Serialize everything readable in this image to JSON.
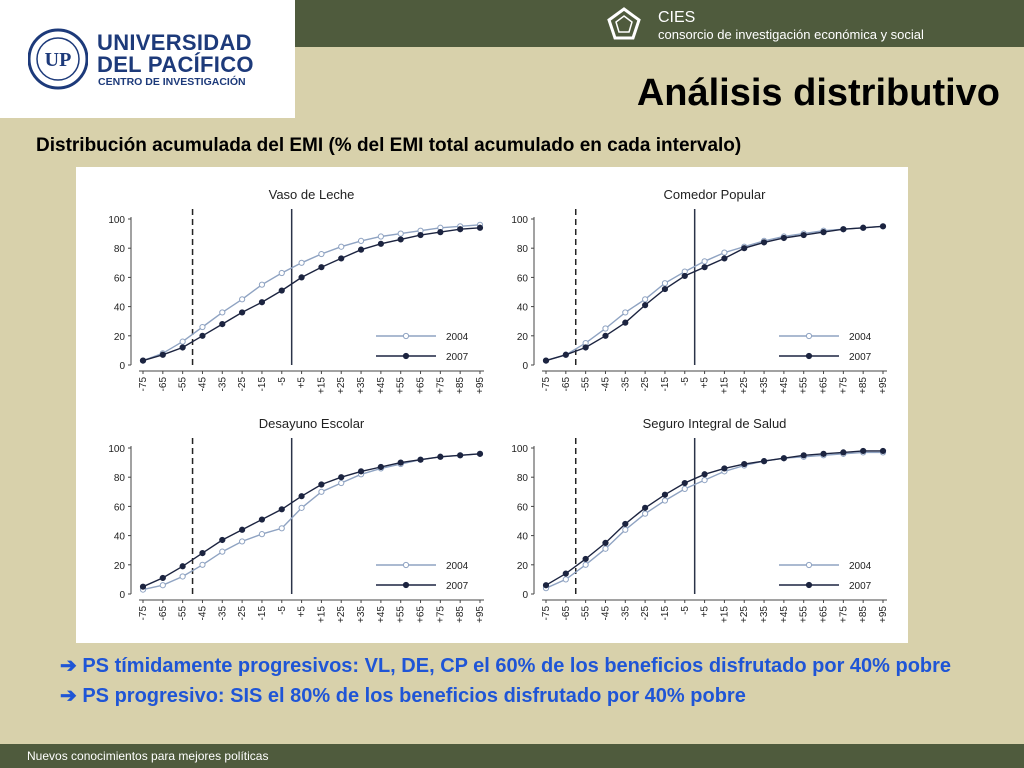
{
  "header": {
    "university_line1": "UNIVERSIDAD",
    "university_line2": "DEL PACÍFICO",
    "university_line3": "CENTRO DE INVESTIGACIÓN",
    "cies_name": "CIES",
    "cies_subtitle": "consorcio de investigación económica y social"
  },
  "title": "Análisis distributivo",
  "subtitle": "Distribución acumulada del EMI (% del EMI total acumulado en cada intervalo)",
  "bullets": [
    "PS tímidamente progresivos: VL, DE, CP el 60% de los beneficios disfrutado por 40% pobre",
    "PS progresivo: SIS el 80% de los beneficios disfrutado por 40% pobre"
  ],
  "footer": {
    "text": "Nuevos conocimientos para mejores políticas"
  },
  "colors": {
    "series_2004": "#8fa3c2",
    "series_2007": "#1c2440",
    "header_bar": "#4f5b3d",
    "background": "#d8d1ab",
    "bullet_text": "#1f55d6"
  },
  "chart_data": [
    {
      "type": "line",
      "title": "Vaso de Leche",
      "categories": [
        "-75",
        "-65",
        "-55",
        "-45",
        "-35",
        "-25",
        "-15",
        "-5",
        "+5",
        "+15",
        "+25",
        "+35",
        "+45",
        "+55",
        "+65",
        "+75",
        "+85",
        "+95"
      ],
      "ylim": [
        0,
        100
      ],
      "yticks": [
        0,
        20,
        40,
        60,
        80,
        100
      ],
      "ref_lines": {
        "dashed": "-45",
        "solid": "+5"
      },
      "legend": "bottom-right",
      "series": [
        {
          "name": "2004",
          "values": [
            3,
            8,
            16,
            26,
            36,
            45,
            55,
            63,
            70,
            76,
            81,
            85,
            88,
            90,
            92,
            94,
            95,
            96
          ]
        },
        {
          "name": "2007",
          "values": [
            3,
            7,
            12,
            20,
            28,
            36,
            43,
            51,
            60,
            67,
            73,
            79,
            83,
            86,
            89,
            91,
            93,
            94
          ]
        }
      ]
    },
    {
      "type": "line",
      "title": "Comedor Popular",
      "categories": [
        "-75",
        "-65",
        "-55",
        "-45",
        "-35",
        "-25",
        "-15",
        "-5",
        "+5",
        "+15",
        "+25",
        "+35",
        "+45",
        "+55",
        "+65",
        "+75",
        "+85",
        "+95"
      ],
      "ylim": [
        0,
        100
      ],
      "yticks": [
        0,
        20,
        40,
        60,
        80,
        100
      ],
      "ref_lines": {
        "dashed": "-55",
        "solid": "+5"
      },
      "legend": "bottom-right",
      "series": [
        {
          "name": "2004",
          "values": [
            3,
            7,
            15,
            25,
            36,
            45,
            56,
            64,
            71,
            77,
            81,
            85,
            88,
            90,
            92,
            93,
            94,
            95
          ]
        },
        {
          "name": "2007",
          "values": [
            3,
            7,
            12,
            20,
            29,
            41,
            52,
            61,
            67,
            73,
            80,
            84,
            87,
            89,
            91,
            93,
            94,
            95
          ]
        }
      ]
    },
    {
      "type": "line",
      "title": "Desayuno Escolar",
      "categories": [
        "-75",
        "-65",
        "-55",
        "-45",
        "-35",
        "-25",
        "-15",
        "-5",
        "+5",
        "+15",
        "+25",
        "+35",
        "+45",
        "+55",
        "+65",
        "+75",
        "+85",
        "+95"
      ],
      "ylim": [
        0,
        100
      ],
      "yticks": [
        0,
        20,
        40,
        60,
        80,
        100
      ],
      "ref_lines": {
        "dashed": "-45",
        "solid": "+5"
      },
      "legend": "bottom-right",
      "series": [
        {
          "name": "2004",
          "values": [
            3,
            6,
            12,
            20,
            29,
            36,
            41,
            45,
            59,
            70,
            76,
            82,
            86,
            89,
            92,
            94,
            95,
            96
          ]
        },
        {
          "name": "2007",
          "values": [
            5,
            11,
            19,
            28,
            37,
            44,
            51,
            58,
            67,
            75,
            80,
            84,
            87,
            90,
            92,
            94,
            95,
            96
          ]
        }
      ]
    },
    {
      "type": "line",
      "title": "Seguro Integral de Salud",
      "categories": [
        "-75",
        "-65",
        "-55",
        "-45",
        "-35",
        "-25",
        "-15",
        "-5",
        "+5",
        "+15",
        "+25",
        "+35",
        "+45",
        "+55",
        "+65",
        "+75",
        "+85",
        "+95"
      ],
      "ylim": [
        0,
        100
      ],
      "yticks": [
        0,
        20,
        40,
        60,
        80,
        100
      ],
      "ref_lines": {
        "dashed": "-55",
        "solid": "+5"
      },
      "legend": "bottom-right",
      "series": [
        {
          "name": "2004",
          "values": [
            4,
            10,
            20,
            31,
            44,
            55,
            64,
            72,
            78,
            84,
            88,
            91,
            93,
            94,
            95,
            96,
            97,
            97
          ]
        },
        {
          "name": "2007",
          "values": [
            6,
            14,
            24,
            35,
            48,
            59,
            68,
            76,
            82,
            86,
            89,
            91,
            93,
            95,
            96,
            97,
            98,
            98
          ]
        }
      ]
    }
  ]
}
